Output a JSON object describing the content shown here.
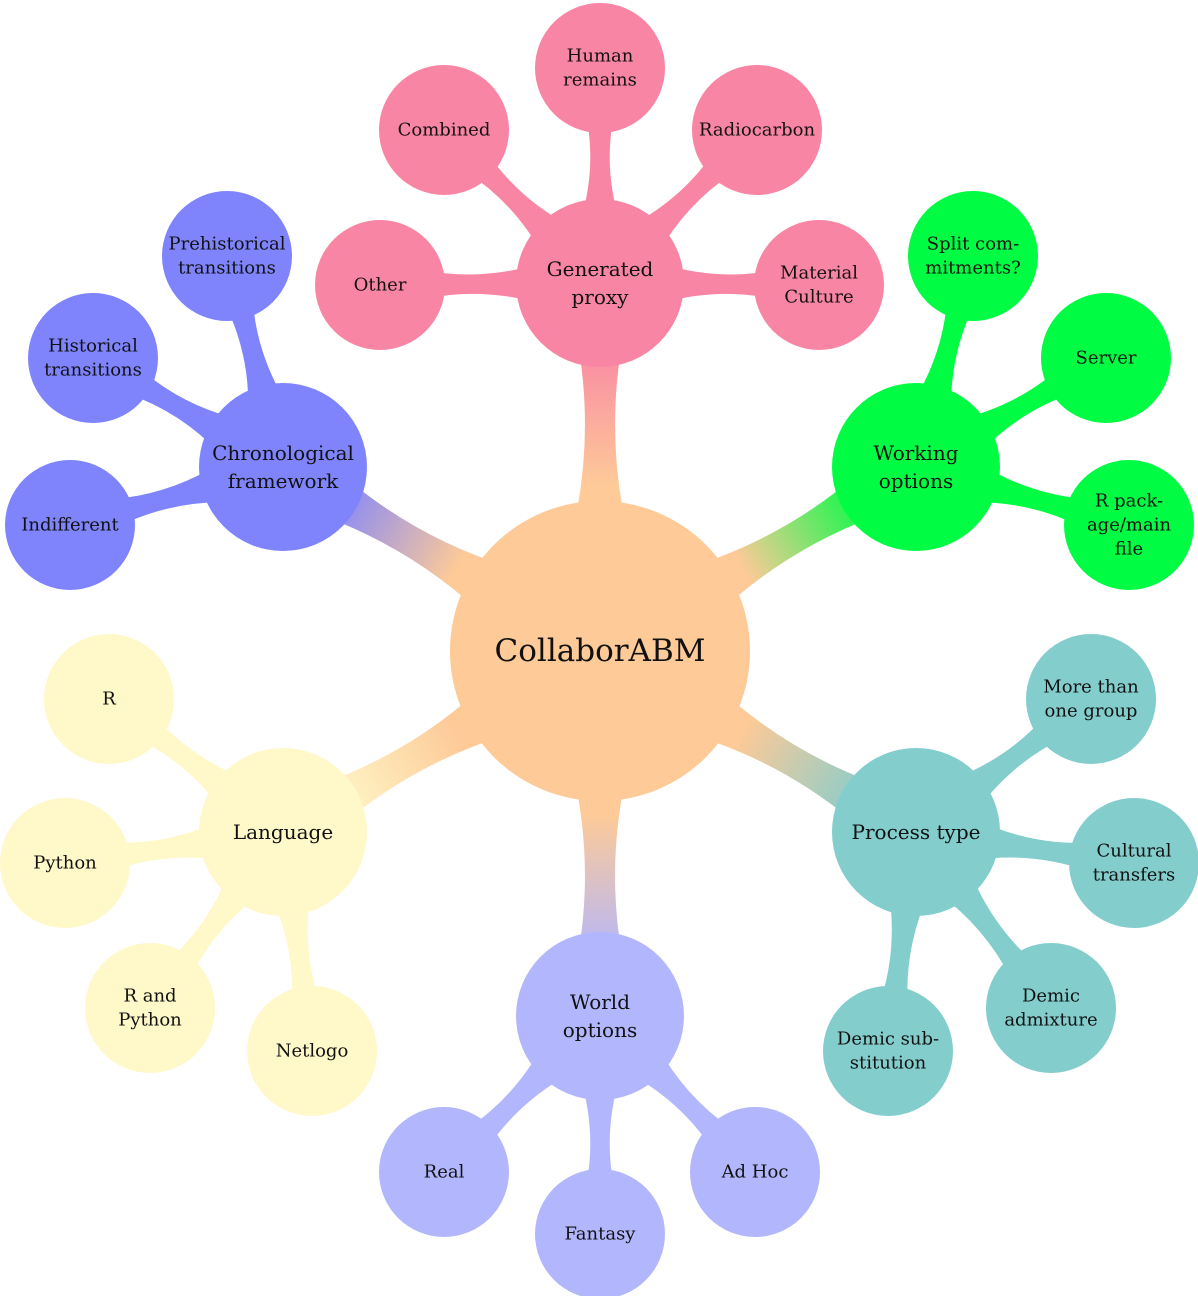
{
  "center": {
    "label": [
      "CollaborABM"
    ],
    "color": "#fdca98"
  },
  "branches": [
    {
      "id": "generated-proxy",
      "label": [
        "Generated",
        "proxy"
      ],
      "color": "#f985a4",
      "children": [
        {
          "id": "other",
          "label": [
            "Other"
          ]
        },
        {
          "id": "combined",
          "label": [
            "Combined"
          ]
        },
        {
          "id": "human-remains",
          "label": [
            "Human",
            "remains"
          ]
        },
        {
          "id": "radiocarbon",
          "label": [
            "Radiocarbon"
          ]
        },
        {
          "id": "material-culture",
          "label": [
            "Material",
            "Culture"
          ]
        }
      ]
    },
    {
      "id": "working-options",
      "label": [
        "Working",
        "options"
      ],
      "color": "#00fd44",
      "children": [
        {
          "id": "split-commitments",
          "label": [
            "Split com-",
            "mitments?"
          ]
        },
        {
          "id": "server",
          "label": [
            "Server"
          ]
        },
        {
          "id": "r-package",
          "label": [
            "R pack-",
            "age/main",
            "file"
          ]
        }
      ]
    },
    {
      "id": "process-type",
      "label": [
        "Process type"
      ],
      "color": "#83cdcd",
      "children": [
        {
          "id": "more-than-one-group",
          "label": [
            "More than",
            "one group"
          ]
        },
        {
          "id": "cultural-transfers",
          "label": [
            "Cultural",
            "transfers"
          ]
        },
        {
          "id": "demic-admixture",
          "label": [
            "Demic",
            "admixture"
          ]
        },
        {
          "id": "demic-substitution",
          "label": [
            "Demic sub-",
            "stitution"
          ]
        }
      ]
    },
    {
      "id": "world-options",
      "label": [
        "World",
        "options"
      ],
      "color": "#b2b6fd",
      "children": [
        {
          "id": "ad-hoc",
          "label": [
            "Ad Hoc"
          ]
        },
        {
          "id": "fantasy",
          "label": [
            "Fantasy"
          ]
        },
        {
          "id": "real",
          "label": [
            "Real"
          ]
        }
      ]
    },
    {
      "id": "language",
      "label": [
        "Language"
      ],
      "color": "#fff8c9",
      "children": [
        {
          "id": "netlogo",
          "label": [
            "Netlogo"
          ]
        },
        {
          "id": "r-and-python",
          "label": [
            "R and",
            "Python"
          ]
        },
        {
          "id": "python",
          "label": [
            "Python"
          ]
        },
        {
          "id": "r",
          "label": [
            "R"
          ]
        }
      ]
    },
    {
      "id": "chronological-framework",
      "label": [
        "Chronological",
        "framework"
      ],
      "color": "#7f84fd",
      "children": [
        {
          "id": "indifferent",
          "label": [
            "Indifferent"
          ]
        },
        {
          "id": "historical-transitions",
          "label": [
            "Historical",
            "transitions"
          ]
        },
        {
          "id": "prehistorical-transitions",
          "label": [
            "Prehistorical",
            "transitions"
          ]
        }
      ]
    }
  ]
}
